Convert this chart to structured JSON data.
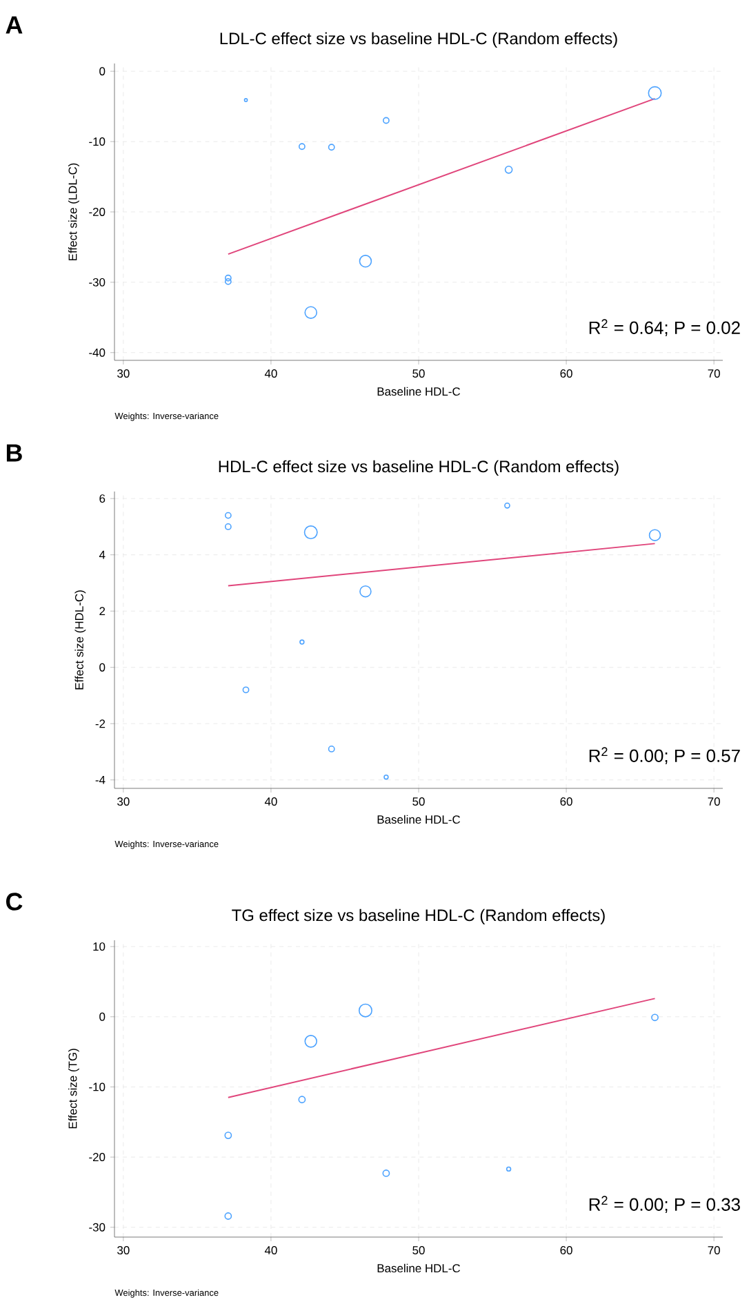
{
  "chart_data": [
    {
      "type": "bubble",
      "title": "LDL-C effect size vs baseline HDL-C (Random effects)",
      "xlabel": "Baseline HDL-C",
      "ylabel": "Effect size (LDL-C)",
      "annotations": [
        "A",
        "R$^{2}$ = 0.64; P = 0.02",
        "Weights: Inverse-variance"
      ],
      "xlim": [
        29.4,
        70.6
      ],
      "ylim": [
        -41.1,
        1.1
      ],
      "xticks": [
        30,
        40,
        50,
        60,
        70
      ],
      "yticks": [
        -40,
        -30,
        -20,
        -10,
        0
      ],
      "grid": true,
      "series": [
        {
          "marker": "circle",
          "color": "#4da3ff",
          "x": [
            38.3,
            42.1,
            44.1,
            47.8,
            56.1,
            66.0,
            46.4,
            42.7,
            37.1,
            37.1
          ],
          "values": [
            -4.1,
            -10.7,
            -10.8,
            -7.0,
            -14.0,
            -3.1,
            -27.0,
            -34.3,
            -29.4,
            -29.9
          ],
          "sizes": [
            0.05,
            0.2,
            0.2,
            0.2,
            0.3,
            1,
            0.85,
            0.85,
            0.2,
            0.2
          ]
        },
        {
          "type": "line",
          "color": "#e0457b",
          "line_style": "solid",
          "x": [
            37.1,
            66.0
          ],
          "values": [
            -26.0,
            -3.9
          ]
        }
      ]
    },
    {
      "type": "bubble",
      "title": "HDL-C effect size vs baseline HDL-C (Random effects)",
      "xlabel": "Baseline HDL-C",
      "ylabel": "Effect size (HDL-C)",
      "annotations": [
        "B",
        "R$^{2}$ = 0.00; P = 0.57",
        "Weights: Inverse-variance"
      ],
      "xlim": [
        29.4,
        70.6
      ],
      "ylim": [
        -4.3,
        6.25
      ],
      "xticks": [
        30,
        40,
        50,
        60,
        70
      ],
      "yticks": [
        -4,
        -2,
        0,
        2,
        4,
        6
      ],
      "grid": true,
      "series": [
        {
          "marker": "circle",
          "color": "#4da3ff",
          "x": [
            37.1,
            37.1,
            42.7,
            56.0,
            66.0,
            46.4,
            42.1,
            38.3,
            44.1,
            47.8
          ],
          "values": [
            5.4,
            5.0,
            4.8,
            5.75,
            4.7,
            2.7,
            0.9,
            -0.8,
            -2.9,
            -3.9
          ],
          "sizes": [
            0.2,
            0.2,
            1,
            0.15,
            0.75,
            0.75,
            0.1,
            0.2,
            0.2,
            0.1
          ]
        },
        {
          "type": "line",
          "color": "#e0457b",
          "line_style": "solid",
          "x": [
            37.1,
            66.0
          ],
          "values": [
            2.9,
            4.4
          ]
        }
      ]
    },
    {
      "type": "bubble",
      "title": "TG effect size vs baseline HDL-C (Random effects)",
      "xlabel": "Baseline HDL-C",
      "ylabel": "Effect size (TG)",
      "annotations": [
        "C",
        "R$^{2}$ = 0.00; P = 0.33",
        "Weights: Inverse-variance"
      ],
      "xlim": [
        29.4,
        70.6
      ],
      "ylim": [
        -31.4,
        10.9
      ],
      "xticks": [
        30,
        40,
        50,
        60,
        70
      ],
      "yticks": [
        -30,
        -20,
        -10,
        0,
        10
      ],
      "grid": true,
      "series": [
        {
          "marker": "circle",
          "color": "#4da3ff",
          "x": [
            46.4,
            42.7,
            66.0,
            42.1,
            37.1,
            47.8,
            56.1,
            37.1
          ],
          "values": [
            0.9,
            -3.5,
            -0.1,
            -11.8,
            -16.9,
            -22.3,
            -21.7,
            -28.4
          ],
          "sizes": [
            1,
            0.85,
            0.25,
            0.25,
            0.25,
            0.25,
            0.1,
            0.25
          ]
        },
        {
          "type": "line",
          "color": "#e0457b",
          "line_style": "solid",
          "x": [
            37.1,
            66.0
          ],
          "values": [
            -11.5,
            2.6
          ]
        }
      ]
    }
  ]
}
